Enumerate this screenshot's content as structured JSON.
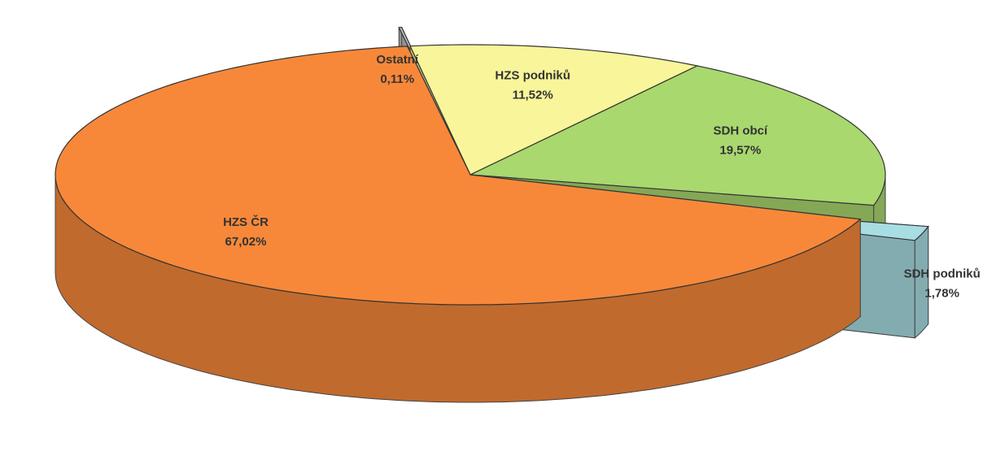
{
  "chart_data": {
    "type": "pie",
    "categories": [
      "HZS ČR",
      "Ostatní",
      "HZS podniků",
      "SDH obcí",
      "SDH podniků"
    ],
    "values": [
      67.02,
      0.11,
      11.52,
      19.57,
      1.78
    ],
    "value_labels": [
      "67,02%",
      "0,11%",
      "11,52%",
      "19,57%",
      "1,78%"
    ],
    "colors": [
      "#f7883a",
      "#bdbdbd",
      "#f8f59a",
      "#a9d86e",
      "#a8dde3"
    ]
  }
}
